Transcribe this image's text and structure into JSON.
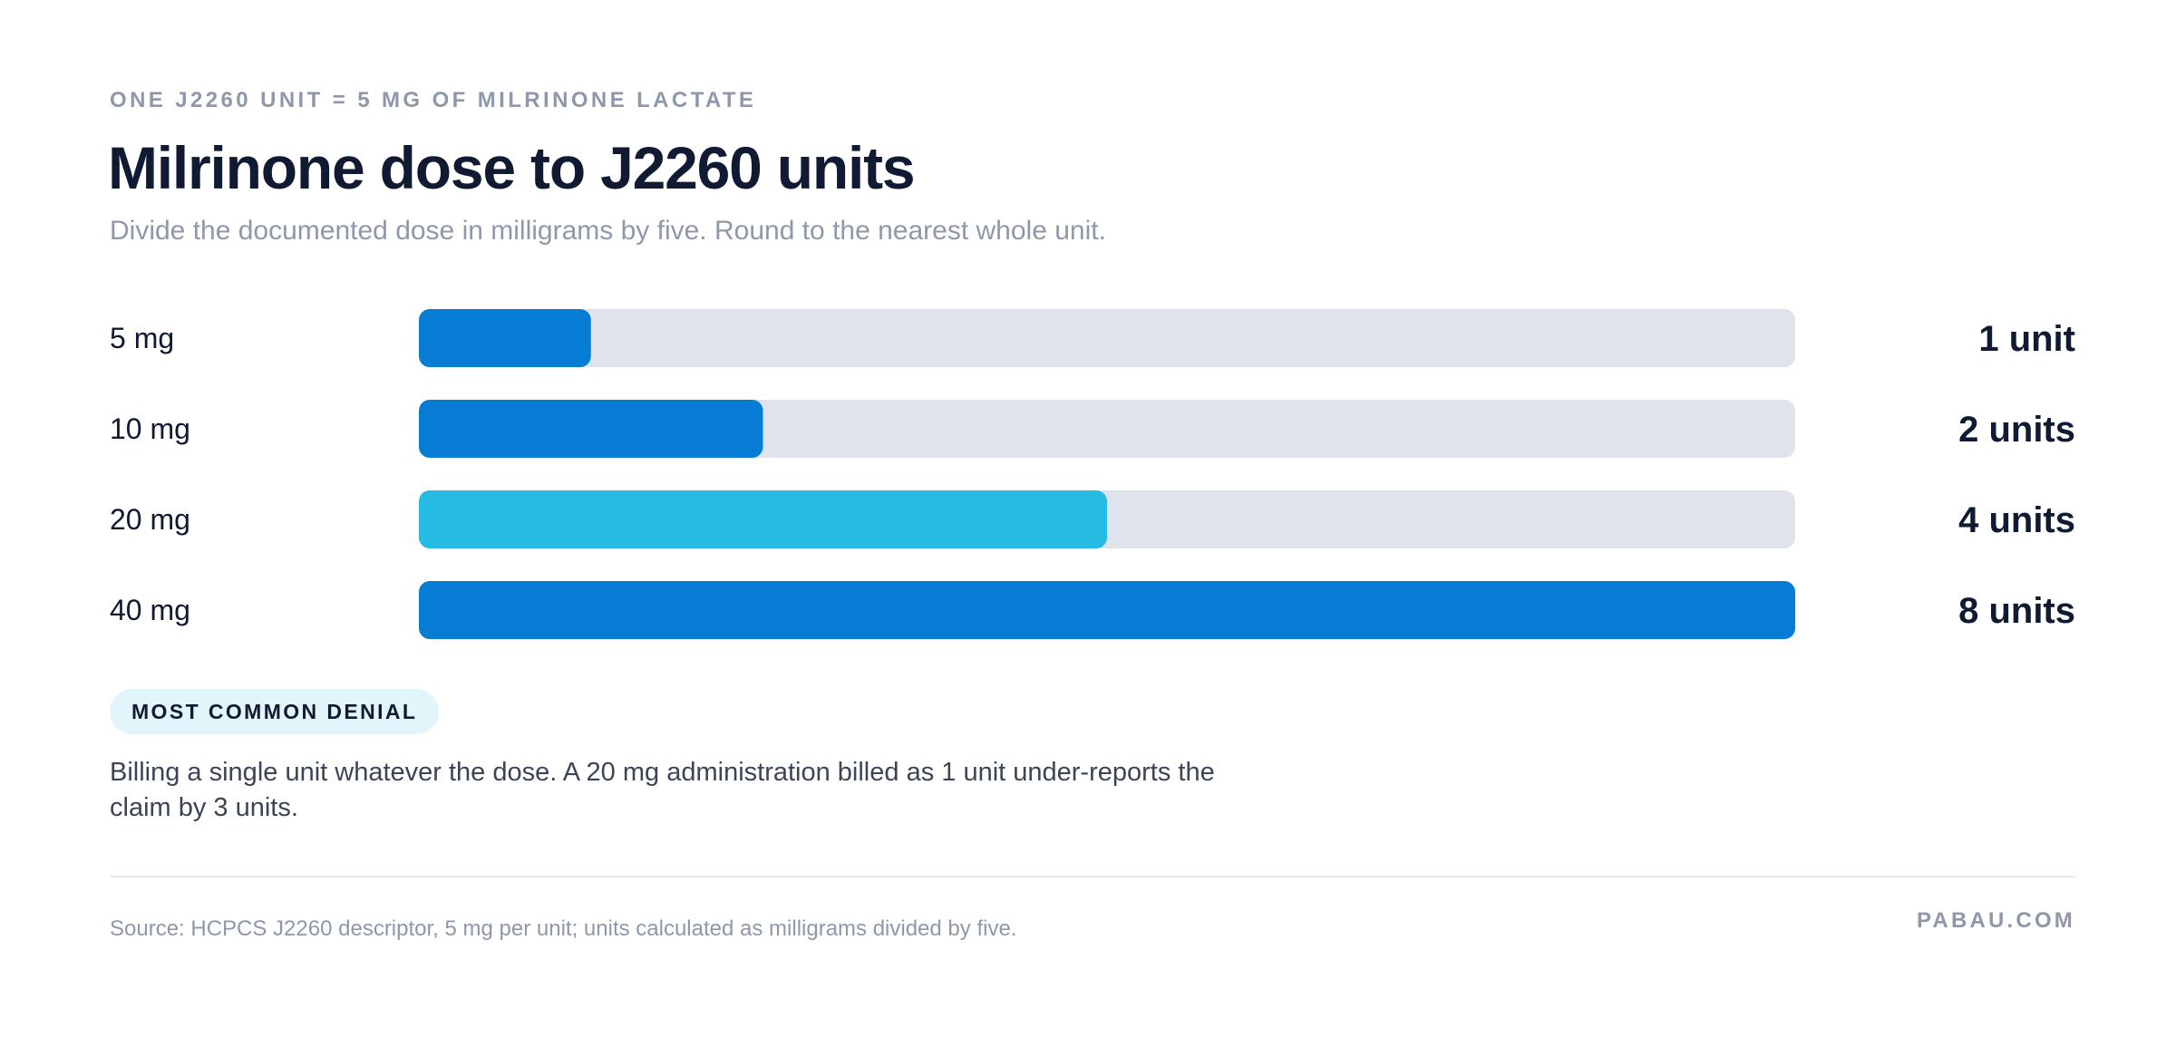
{
  "header": {
    "kicker": "ONE J2260 UNIT = 5 MG OF MILRINONE LACTATE",
    "title": "Milrinone dose to J2260 units",
    "subtitle": "Divide the documented dose in milligrams by five. Round to the nearest whole unit."
  },
  "chart_data": {
    "type": "bar",
    "orientation": "horizontal",
    "categories": [
      "5 mg",
      "10 mg",
      "20 mg",
      "40 mg"
    ],
    "values": [
      1,
      2,
      4,
      8
    ],
    "value_labels": [
      "1 unit",
      "2 units",
      "4 units",
      "8 units"
    ],
    "xlim": [
      0,
      8
    ],
    "highlight_category": "20 mg",
    "grid": false,
    "legend": "none"
  },
  "colors": {
    "bar": "#067cd5",
    "bar_highlight": "#25bbe2",
    "track": "#dfe3ec",
    "text": "#111a33",
    "muted": "#8f98ab",
    "pill_background": "#e1f5fa"
  },
  "callout": {
    "badge": "MOST COMMON DENIAL",
    "text": "Billing a single unit whatever the dose. A 20 mg administration billed as 1 unit under-reports the claim by 3 units."
  },
  "footer": {
    "source": "Source: HCPCS J2260 descriptor, 5 mg per unit; units calculated as milligrams divided by five.",
    "brand": "PABAU.COM"
  }
}
